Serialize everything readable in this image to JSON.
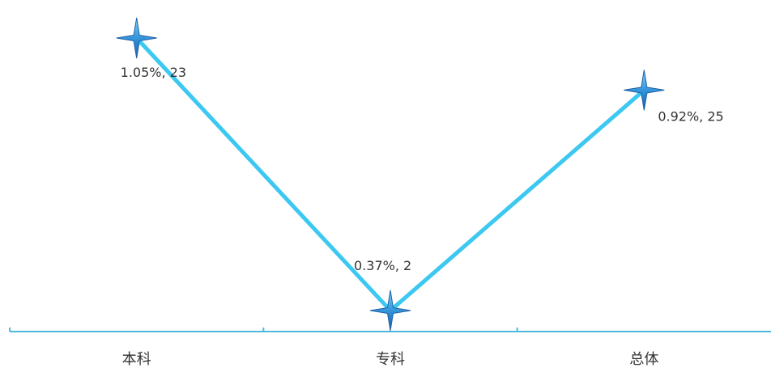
{
  "chart_data": {
    "type": "line",
    "categories": [
      "本科",
      "专科",
      "总体"
    ],
    "series": [
      {
        "values": [
          1.05,
          0.37,
          0.92
        ],
        "data_labels": [
          "1.05%, 23",
          "0.37%, 2",
          "0.92%, 25"
        ],
        "color": "#3cc8f0",
        "marker": "four-point-star"
      }
    ],
    "ylim": [
      0.37,
      1.05
    ],
    "grid": false,
    "axis_color": "#4db8e0"
  }
}
